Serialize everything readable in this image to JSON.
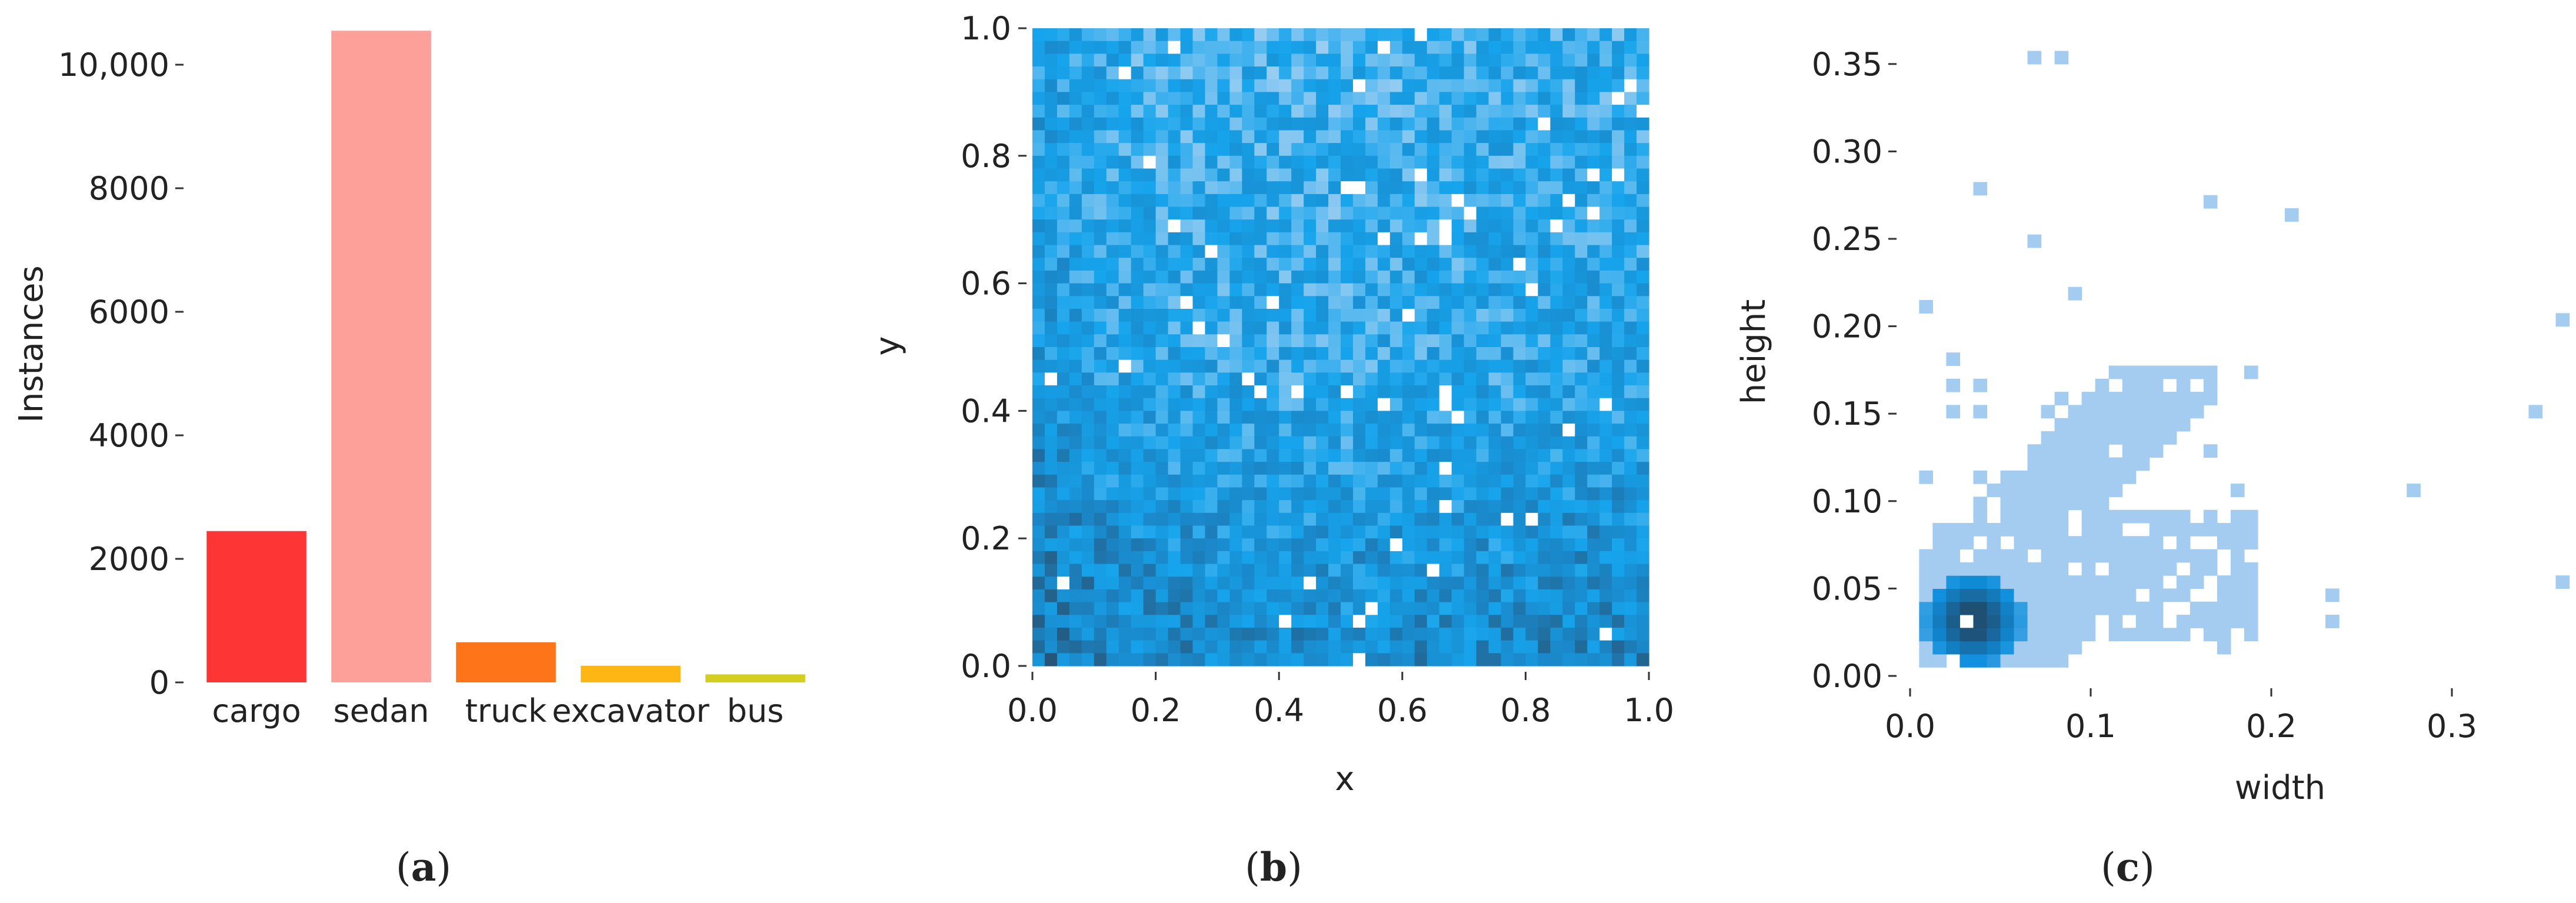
{
  "chart_data": [
    {
      "type": "bar",
      "panel_label": {
        "open": "(",
        "letter": "a",
        "close": ")"
      },
      "categories": [
        "cargo",
        "sedan",
        "truck",
        "excavator",
        "bus"
      ],
      "values": [
        2450,
        10550,
        650,
        270,
        130
      ],
      "colors": [
        "#fe3535",
        "#fda09a",
        "#fd7518",
        "#fdb614",
        "#d6ce1c"
      ],
      "ylabel": "Instances",
      "ylim": [
        0,
        10600
      ],
      "yticks": [
        0,
        2000,
        4000,
        6000,
        8000,
        10000
      ],
      "ytick_labels": [
        "0",
        "2000",
        "4000",
        "6000",
        "8000",
        "10,000"
      ],
      "grid": false
    },
    {
      "type": "heatmap",
      "panel_label": {
        "open": "(",
        "letter": "b",
        "close": ")"
      },
      "xlabel": "x",
      "ylabel": "y",
      "xlim": [
        0,
        1
      ],
      "ylim": [
        0,
        1
      ],
      "xtick_labels": [
        "0.0",
        "0.2",
        "0.4",
        "0.6",
        "0.8",
        "1.0"
      ],
      "ytick_labels": [
        "0.0",
        "0.2",
        "0.4",
        "0.6",
        "0.8",
        "1.0"
      ],
      "bins": [
        50,
        50
      ],
      "colormap": [
        "#2a4a66",
        "#1a87c8",
        "#16a4ec",
        "#9fcff2"
      ],
      "grid": false
    },
    {
      "type": "heatmap",
      "panel_label": {
        "open": "(",
        "letter": "c",
        "close": ")"
      },
      "xlabel": "width",
      "ylabel": "height",
      "xlim": [
        0,
        0.36
      ],
      "ylim": [
        0,
        0.38
      ],
      "xtick_labels": [
        "0.0",
        "0.1",
        "0.2",
        "0.3"
      ],
      "ytick_labels": [
        "0.00",
        "0.05",
        "0.10",
        "0.15",
        "0.20",
        "0.25",
        "0.30",
        "0.35"
      ],
      "colormap": [
        "#a3ccf0",
        "#0e8fde",
        "#1f4f73"
      ],
      "grid": false
    }
  ]
}
